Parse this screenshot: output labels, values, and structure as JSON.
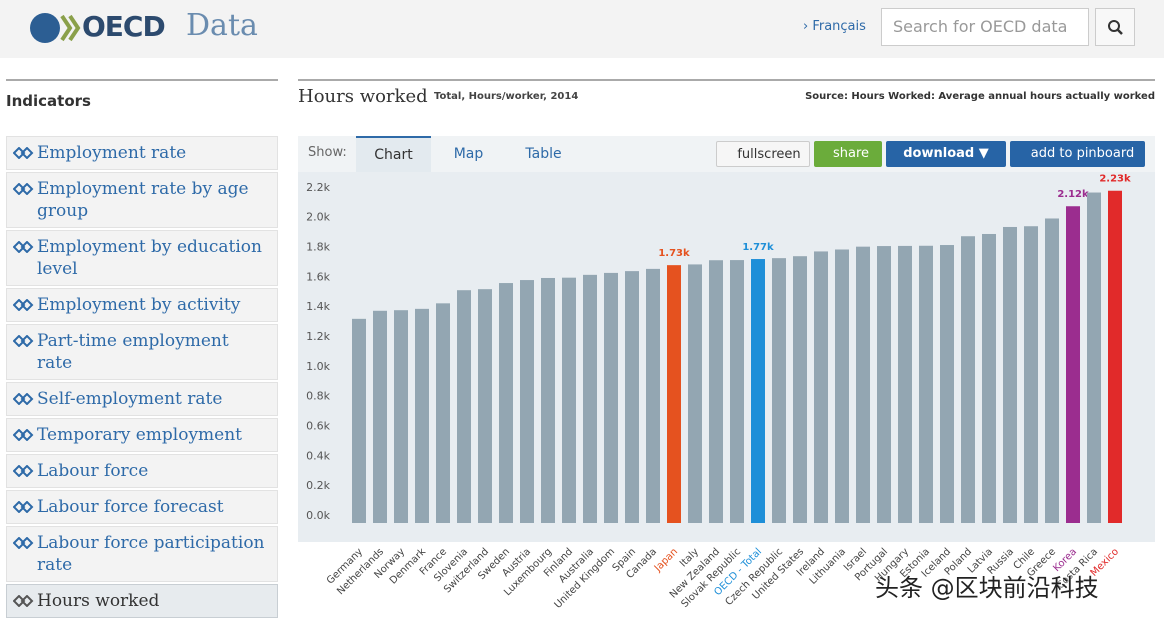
{
  "header": {
    "logo": "OECD",
    "site": "Data",
    "language": "› Français",
    "search_placeholder": "Search for OECD data"
  },
  "sidebar": {
    "title": "Indicators",
    "items": [
      "Employment rate",
      "Employment rate by age group",
      "Employment by education level",
      "Employment by activity",
      "Part-time employment rate",
      "Self-employment rate",
      "Temporary employment",
      "Labour force",
      "Labour force forecast",
      "Labour force participation rate",
      "Hours worked"
    ]
  },
  "panel": {
    "title": "Hours worked",
    "subtitle": "Total, Hours/worker, 2014",
    "source": "Source: Hours Worked: Average annual hours actually worked",
    "show": "Show:",
    "tabs": [
      "Chart",
      "Map",
      "Table"
    ],
    "buttons": [
      "fullscreen",
      "share",
      "download ▼",
      "add to pinboard"
    ]
  },
  "watermark": "头条 @区块前沿科技",
  "chart_data": {
    "type": "bar",
    "categories": [
      "Germany",
      "Netherlands",
      "Norway",
      "Denmark",
      "France",
      "Slovenia",
      "Switzerland",
      "Sweden",
      "Austria",
      "Luxembourg",
      "Finland",
      "Australia",
      "United Kingdom",
      "Spain",
      "Canada",
      "Japan",
      "Italy",
      "New Zealand",
      "Slovak Republic",
      "OECD - Total",
      "Czech Republic",
      "United States",
      "Ireland",
      "Lithuania",
      "Israel",
      "Portugal",
      "Hungary",
      "Estonia",
      "Iceland",
      "Poland",
      "Latvia",
      "Russia",
      "Chile",
      "Greece",
      "Korea",
      "Costa Rica",
      "Mexico"
    ],
    "values": [
      1369,
      1423,
      1427,
      1436,
      1473,
      1561,
      1568,
      1609,
      1629,
      1643,
      1645,
      1664,
      1677,
      1689,
      1704,
      1729,
      1734,
      1762,
      1763,
      1770,
      1776,
      1789,
      1821,
      1834,
      1853,
      1857,
      1858,
      1859,
      1864,
      1923,
      1938,
      1985,
      1990,
      2042,
      2124,
      2216,
      2228
    ],
    "value_labels": [
      null,
      null,
      null,
      null,
      null,
      null,
      null,
      null,
      null,
      null,
      null,
      null,
      null,
      null,
      null,
      "1.73k",
      null,
      null,
      null,
      "1.77k",
      null,
      null,
      null,
      null,
      null,
      null,
      null,
      null,
      null,
      null,
      null,
      null,
      null,
      null,
      "2.12k",
      null,
      "2.23k"
    ],
    "color": "#93a6b2",
    "highlight_colors": [
      null,
      null,
      null,
      null,
      null,
      null,
      null,
      null,
      null,
      null,
      null,
      null,
      null,
      null,
      null,
      "#e5521f",
      null,
      null,
      null,
      "#1e8fd8",
      null,
      null,
      null,
      null,
      null,
      null,
      null,
      null,
      null,
      null,
      null,
      null,
      null,
      null,
      "#9b2d8f",
      null,
      "#e12a2a"
    ],
    "ylim": [
      0,
      2300
    ],
    "yticks": [
      {
        "value": 0,
        "label": "0.0k"
      },
      {
        "value": 200,
        "label": "0.2k"
      },
      {
        "value": 400,
        "label": "0.4k"
      },
      {
        "value": 600,
        "label": "0.6k"
      },
      {
        "value": 800,
        "label": "0.8k"
      },
      {
        "value": 1000,
        "label": "1.0k"
      },
      {
        "value": 1200,
        "label": "1.2k"
      },
      {
        "value": 1400,
        "label": "1.4k"
      },
      {
        "value": 1600,
        "label": "1.6k"
      },
      {
        "value": 1800,
        "label": "1.8k"
      },
      {
        "value": 2000,
        "label": "2.0k"
      },
      {
        "value": 2200,
        "label": "2.2k"
      }
    ],
    "grid": false
  }
}
